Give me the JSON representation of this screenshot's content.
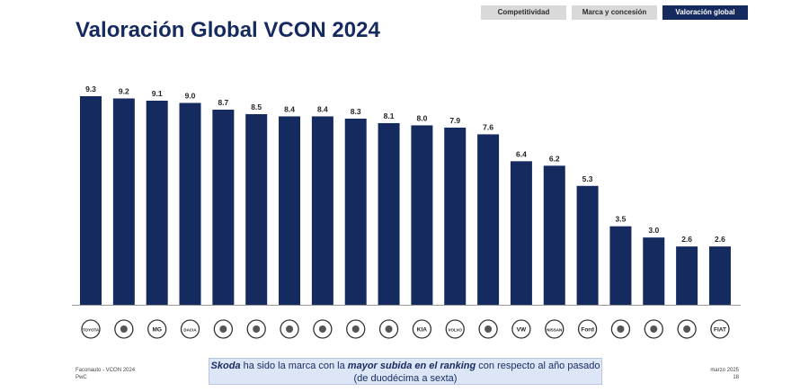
{
  "tabs": [
    {
      "label": "Competitividad",
      "active": false
    },
    {
      "label": "Marca y concesión",
      "active": false
    },
    {
      "label": "Valoración global",
      "active": true
    }
  ],
  "title": "Valoración Global VCON 2024",
  "colors": {
    "bar": "#152a5f",
    "title": "#152a5f",
    "active_tab": "#152a5f",
    "tab": "#d9d9d9",
    "note_bg": "#dde6f6"
  },
  "chart_data": {
    "type": "bar",
    "categories": [
      "Toyota",
      "Cupra",
      "MG",
      "Dacia",
      "Mazda",
      "Skoda",
      "Renault",
      "Seat",
      "BMW",
      "Mercedes-Benz",
      "Kia",
      "Volvo",
      "Audi",
      "Volkswagen",
      "Nissan",
      "Ford",
      "Citroën",
      "Opel",
      "Peugeot",
      "Fiat"
    ],
    "values": [
      9.3,
      9.2,
      9.1,
      9.0,
      8.7,
      8.5,
      8.4,
      8.4,
      8.3,
      8.1,
      8.0,
      7.9,
      7.6,
      6.4,
      6.2,
      5.3,
      3.5,
      3.0,
      2.6,
      2.6
    ],
    "value_labels": [
      "9.3",
      "9.2",
      "9.1",
      "9.0",
      "8.7",
      "8.5",
      "8.4",
      "8.4",
      "8.3",
      "8.1",
      "8.0",
      "7.9",
      "7.6",
      "6.4",
      "6.2",
      "5.3",
      "3.5",
      "3.0",
      "2.6",
      "2.6"
    ],
    "logo_text": [
      "TOYOTA",
      "",
      "MG",
      "DACIA",
      "",
      "",
      "",
      "",
      "",
      "",
      "KIA",
      "VOLVO",
      "",
      "VW",
      "NISSAN",
      "Ford",
      "",
      "",
      "",
      "FIAT"
    ],
    "x_axis": "brand logos",
    "grid": false,
    "legend": "none"
  },
  "note": {
    "brand": "Skoda",
    "text1": " ha sido la marca con la ",
    "emph": "mayor subida en el ranking",
    "text2": " con respecto al año pasado (de duodécima a sexta)"
  },
  "footer": {
    "left_line1": "Faconauto - VCON 2024",
    "left_line2": "PwC",
    "right_line1": "marzo 2025",
    "right_line2": "18"
  }
}
